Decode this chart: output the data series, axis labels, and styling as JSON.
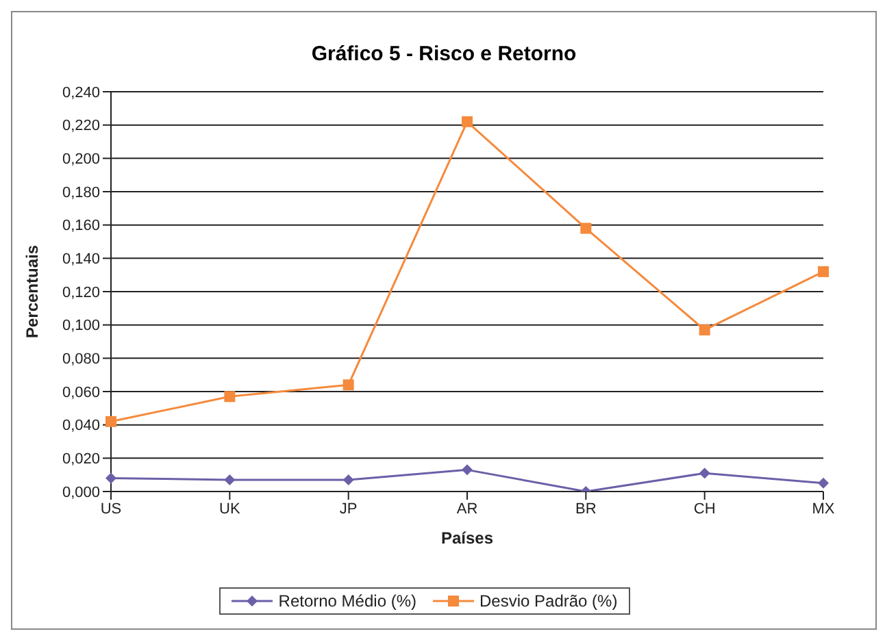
{
  "chart_data": {
    "type": "line",
    "title": "Gráfico 5 - Risco e Retorno",
    "xlabel": "Países",
    "ylabel": "Percentuais",
    "categories": [
      "US",
      "UK",
      "JP",
      "AR",
      "BR",
      "CH",
      "MX"
    ],
    "series": [
      {
        "name": "Retorno Médio (%)",
        "color": "#6b5fa8",
        "marker": "diamond",
        "values": [
          0.008,
          0.007,
          0.007,
          0.013,
          0.0,
          0.011,
          0.005
        ]
      },
      {
        "name": "Desvio Padrão (%)",
        "color": "#f58a3c",
        "marker": "square",
        "values": [
          0.042,
          0.057,
          0.064,
          0.222,
          0.158,
          0.097,
          0.132
        ]
      }
    ],
    "ylim": [
      0,
      0.24
    ],
    "yticks": [
      {
        "value": 0,
        "label": "0,000"
      },
      {
        "value": 0.02,
        "label": "0,020"
      },
      {
        "value": 0.04,
        "label": "0,040"
      },
      {
        "value": 0.06,
        "label": "0,060"
      },
      {
        "value": 0.08,
        "label": "0,080"
      },
      {
        "value": 0.1,
        "label": "0,100"
      },
      {
        "value": 0.12,
        "label": "0,120"
      },
      {
        "value": 0.14,
        "label": "0,140"
      },
      {
        "value": 0.16,
        "label": "0,160"
      },
      {
        "value": 0.18,
        "label": "0,180"
      },
      {
        "value": 0.2,
        "label": "0,200"
      },
      {
        "value": 0.22,
        "label": "0,220"
      },
      {
        "value": 0.24,
        "label": "0,240"
      }
    ],
    "grid": "y",
    "legend": "bottom",
    "line_style": "solid"
  }
}
